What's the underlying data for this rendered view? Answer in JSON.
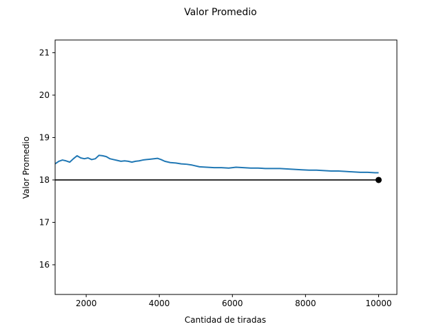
{
  "chart_data": {
    "type": "line",
    "title": "Valor Promedio",
    "xlabel": "Cantidad de tiradas",
    "ylabel": "Valor Promedio",
    "xlim": [
      1150,
      10500
    ],
    "ylim": [
      15.3,
      21.3
    ],
    "xticks": [
      2000,
      4000,
      6000,
      8000,
      10000
    ],
    "yticks": [
      16,
      17,
      18,
      19,
      20,
      21
    ],
    "grid": false,
    "series": [
      {
        "color": "#1f77b4",
        "x": [
          1150,
          1250,
          1350,
          1450,
          1550,
          1650,
          1750,
          1850,
          1950,
          2050,
          2150,
          2250,
          2350,
          2450,
          2550,
          2650,
          2750,
          2850,
          2950,
          3050,
          3150,
          3250,
          3350,
          3450,
          3550,
          3650,
          3750,
          3850,
          3950,
          4050,
          4150,
          4300,
          4450,
          4600,
          4750,
          4900,
          5100,
          5300,
          5500,
          5700,
          5900,
          6100,
          6300,
          6500,
          6700,
          6900,
          7100,
          7300,
          7500,
          7700,
          7900,
          8100,
          8300,
          8500,
          8700,
          8900,
          9100,
          9300,
          9500,
          9700,
          9900,
          10000
        ],
        "y": [
          18.38,
          18.44,
          18.47,
          18.45,
          18.42,
          18.5,
          18.57,
          18.52,
          18.5,
          18.52,
          18.48,
          18.5,
          18.58,
          18.57,
          18.55,
          18.5,
          18.48,
          18.46,
          18.44,
          18.45,
          18.44,
          18.42,
          18.44,
          18.45,
          18.47,
          18.48,
          18.49,
          18.5,
          18.51,
          18.48,
          18.44,
          18.41,
          18.4,
          18.38,
          18.37,
          18.35,
          18.31,
          18.3,
          18.29,
          18.29,
          18.28,
          18.3,
          18.29,
          18.28,
          18.28,
          18.27,
          18.27,
          18.27,
          18.26,
          18.25,
          18.24,
          18.23,
          18.23,
          18.22,
          18.21,
          18.21,
          18.2,
          18.19,
          18.18,
          18.18,
          18.17,
          18.17
        ]
      }
    ],
    "reference_line": {
      "y": 18,
      "x_start": 1150,
      "x_end": 10000,
      "color": "#000000"
    },
    "marker_point": {
      "x": 10000,
      "y": 18,
      "color": "#000000"
    }
  }
}
